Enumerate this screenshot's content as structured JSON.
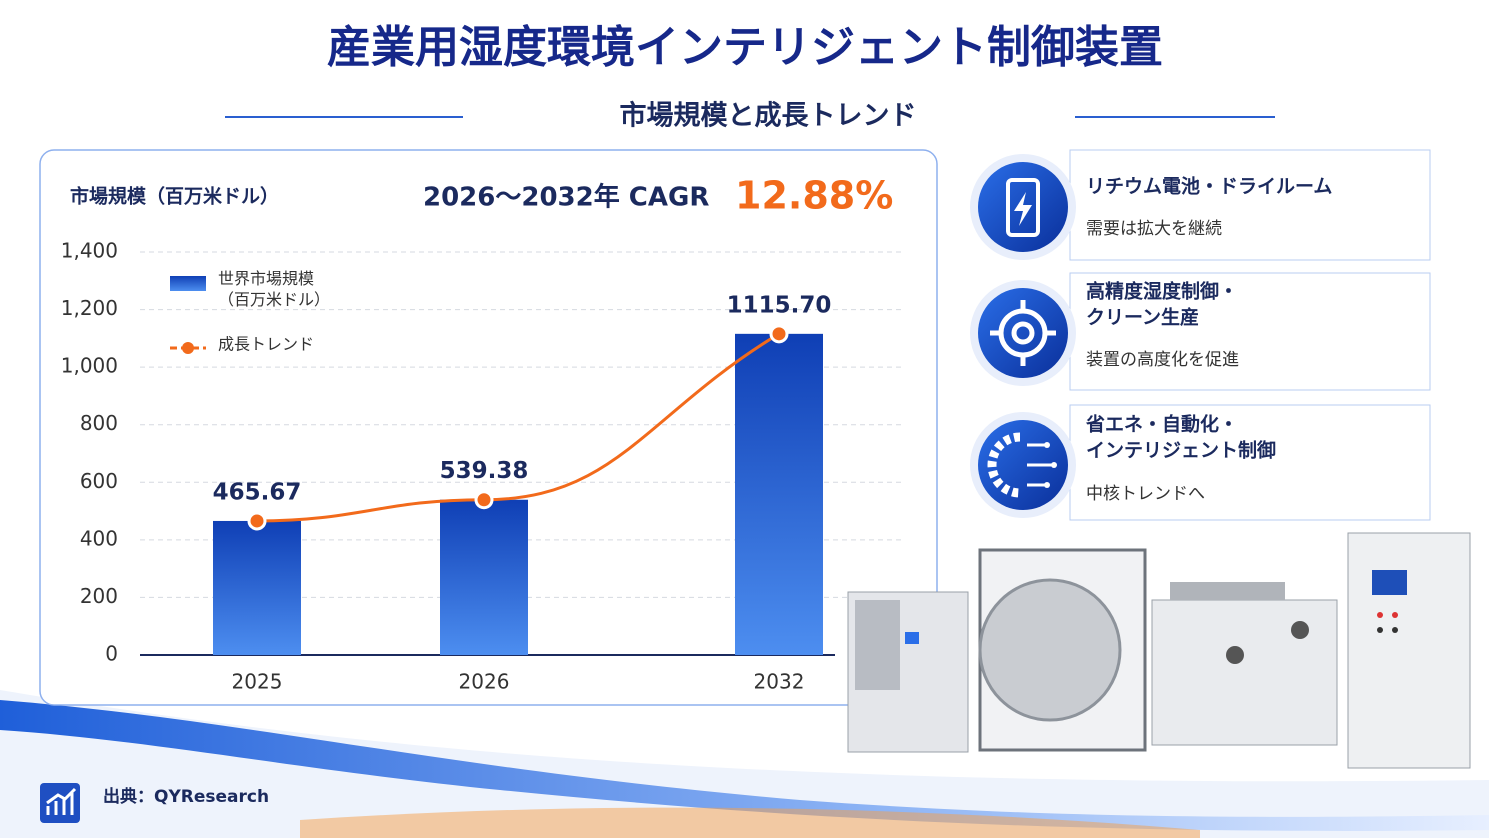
{
  "title": "産業用湿度環境インテリジェント制御装置",
  "subtitle": "市場規模と成長トレンド",
  "chart_data": {
    "type": "bar",
    "y_axis_label": "市場規模（百万米ドル）",
    "cagr_label": "2026〜2032年 CAGR",
    "cagr_value": "12.88%",
    "categories": [
      "2025",
      "2026",
      "2032"
    ],
    "series": [
      {
        "name": "世界市場規模（百万米ドル）",
        "color": "#1a56c8",
        "values": [
          465.67,
          539.38,
          1115.7
        ],
        "value_labels": [
          "465.67",
          "539.38",
          "1115.70"
        ]
      },
      {
        "name": "成長トレンド",
        "type": "line",
        "color": "#f26a1b",
        "values": [
          465.67,
          539.38,
          1115.7
        ]
      }
    ],
    "ylim": [
      0,
      1400
    ],
    "yticks": [
      0,
      200,
      400,
      600,
      800,
      {
        "value": 1000,
        "label": "1,000"
      },
      {
        "value": 1200,
        "label": "1,200"
      },
      {
        "value": 1400,
        "label": "1,400"
      }
    ],
    "grid": true
  },
  "features": [
    {
      "title_lines": [
        "リチウム電池・ドライルーム"
      ],
      "desc": "需要は拡大を継続"
    },
    {
      "title_lines": [
        "高精度湿度制御・",
        "クリーン生産"
      ],
      "desc": "装置の高度化を促進"
    },
    {
      "title_lines": [
        "省エネ・自動化・",
        "インテリジェント制御"
      ],
      "desc": "中核トレンドへ"
    }
  ],
  "source": "出典：QYResearch"
}
